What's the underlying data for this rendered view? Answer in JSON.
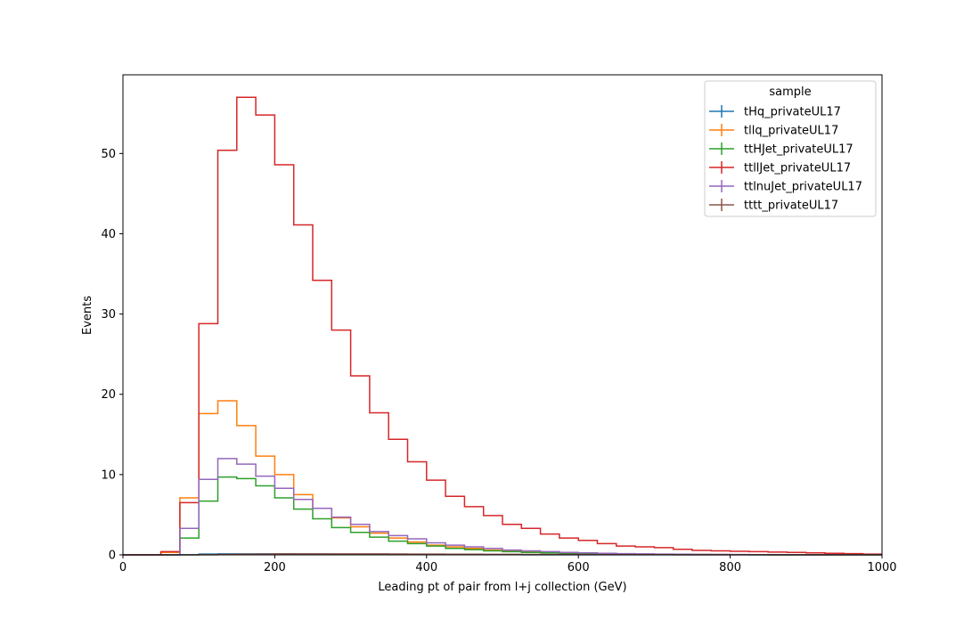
{
  "chart_data": {
    "type": "line",
    "subtype": "step-histogram",
    "xlabel": "Leading pt of pair from l+j collection (GeV)",
    "ylabel": "Events",
    "xlim": [
      0,
      1000
    ],
    "ylim": [
      0,
      59.8
    ],
    "xticks": [
      0,
      200,
      400,
      600,
      800,
      1000
    ],
    "yticks": [
      0,
      10,
      20,
      30,
      40,
      50
    ],
    "grid": false,
    "legend": {
      "title": "sample",
      "placement": "top-right"
    },
    "bin_edges": [
      0,
      25,
      50,
      75,
      100,
      125,
      150,
      175,
      200,
      225,
      250,
      275,
      300,
      325,
      350,
      375,
      400,
      425,
      450,
      475,
      500,
      525,
      550,
      575,
      600,
      625,
      650,
      675,
      700,
      725,
      750,
      775,
      800,
      825,
      850,
      875,
      900,
      925,
      950,
      975,
      1000
    ],
    "series": [
      {
        "name": "tHq_privateUL17",
        "color": "#1f77b4",
        "values": [
          0,
          0,
          0,
          0.02,
          0.1,
          0.12,
          0.13,
          0.12,
          0.12,
          0.11,
          0.1,
          0.09,
          0.08,
          0.07,
          0.06,
          0.05,
          0.04,
          0.04,
          0.03,
          0.03,
          0.03,
          0.02,
          0.02,
          0.02,
          0.02,
          0.01,
          0.01,
          0.01,
          0.01,
          0.01,
          0.01,
          0.01,
          0.01,
          0.01,
          0,
          0,
          0,
          0,
          0,
          0
        ]
      },
      {
        "name": "tllq_privateUL17",
        "color": "#ff7f0e",
        "values": [
          0,
          0,
          0.3,
          7.1,
          17.6,
          19.2,
          16.1,
          12.3,
          10.0,
          7.5,
          5.8,
          4.6,
          3.5,
          2.7,
          2.1,
          1.6,
          1.2,
          1.0,
          0.8,
          0.6,
          0.5,
          0.4,
          0.3,
          0.25,
          0.2,
          0.15,
          0.12,
          0.1,
          0.08,
          0.06,
          0.05,
          0.04,
          0.03,
          0.03,
          0.02,
          0.02,
          0.01,
          0.01,
          0.01,
          0.01
        ]
      },
      {
        "name": "ttHJet_privateUL17",
        "color": "#2ca02c",
        "values": [
          0,
          0,
          0,
          2.1,
          6.7,
          9.7,
          9.5,
          8.6,
          7.1,
          5.7,
          4.5,
          3.4,
          2.8,
          2.2,
          1.7,
          1.4,
          1.1,
          0.8,
          0.65,
          0.5,
          0.4,
          0.3,
          0.25,
          0.2,
          0.15,
          0.12,
          0.1,
          0.08,
          0.06,
          0.05,
          0.04,
          0.03,
          0.03,
          0.02,
          0.02,
          0.01,
          0.01,
          0.01,
          0.01,
          0
        ]
      },
      {
        "name": "ttllJet_privateUL17",
        "color": "#d62728",
        "values": [
          0,
          0,
          0.4,
          6.5,
          28.8,
          50.4,
          57.0,
          54.8,
          48.6,
          41.1,
          34.2,
          28.0,
          22.3,
          17.7,
          14.4,
          11.6,
          9.3,
          7.3,
          6.0,
          4.9,
          3.8,
          3.3,
          2.6,
          2.1,
          1.8,
          1.4,
          1.1,
          1.0,
          0.9,
          0.7,
          0.55,
          0.5,
          0.45,
          0.4,
          0.35,
          0.3,
          0.25,
          0.2,
          0.15,
          0.1
        ]
      },
      {
        "name": "ttlnuJet_privateUL17",
        "color": "#9467bd",
        "values": [
          0,
          0,
          0,
          3.3,
          9.4,
          12.0,
          11.3,
          9.8,
          8.3,
          6.9,
          5.8,
          4.7,
          3.8,
          2.9,
          2.4,
          2.0,
          1.5,
          1.2,
          1.0,
          0.8,
          0.6,
          0.5,
          0.4,
          0.3,
          0.25,
          0.2,
          0.15,
          0.12,
          0.1,
          0.08,
          0.06,
          0.05,
          0.04,
          0.03,
          0.03,
          0.02,
          0.02,
          0.01,
          0.01,
          0.01
        ]
      },
      {
        "name": "tttt_privateUL17",
        "color": "#8c564b",
        "values": [
          0,
          0,
          0,
          0,
          0.02,
          0.05,
          0.08,
          0.1,
          0.12,
          0.13,
          0.13,
          0.13,
          0.12,
          0.12,
          0.11,
          0.1,
          0.1,
          0.09,
          0.08,
          0.07,
          0.07,
          0.06,
          0.05,
          0.05,
          0.04,
          0.04,
          0.03,
          0.03,
          0.03,
          0.02,
          0.02,
          0.02,
          0.02,
          0.01,
          0.01,
          0.01,
          0.01,
          0.01,
          0.01,
          0.01
        ]
      }
    ]
  }
}
